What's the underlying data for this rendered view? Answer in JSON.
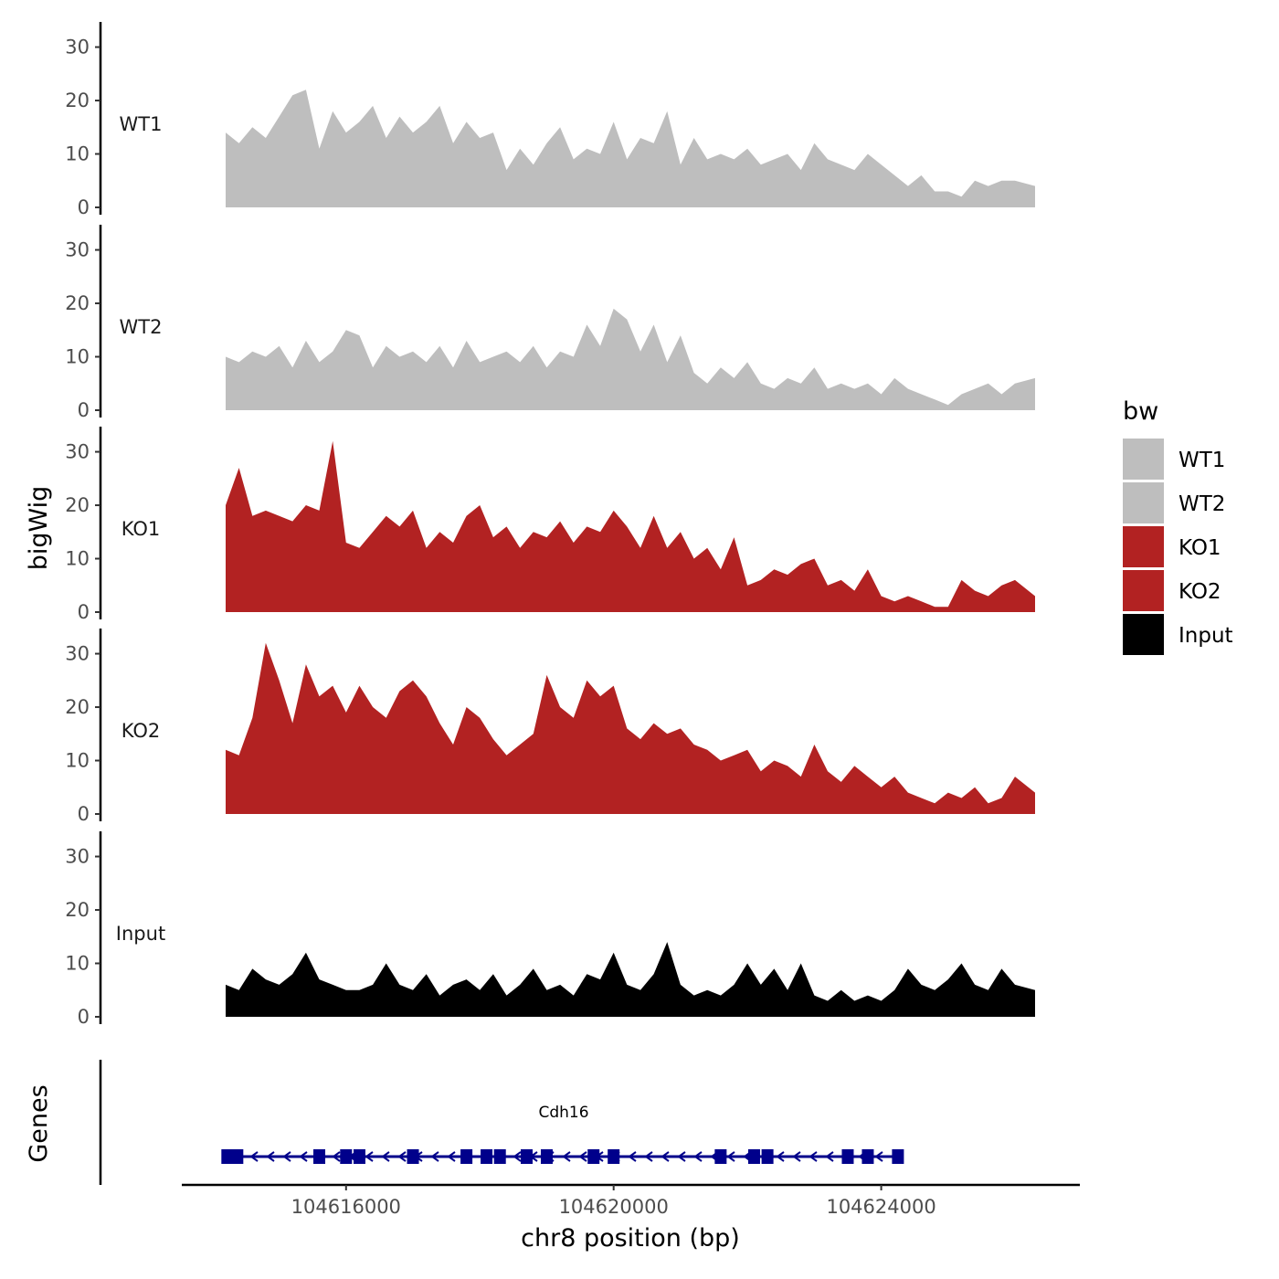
{
  "chart_data": {
    "type": "area",
    "title": "",
    "ylabel": "bigWig",
    "xlabel": "chr8 position (bp)",
    "x_range": [
      104614200,
      104626300
    ],
    "x_ticks": [
      104616000,
      104620000,
      104624000
    ],
    "x_tick_labels": [
      "104616000",
      "104620000",
      "104624000"
    ],
    "ylim": [
      0,
      33
    ],
    "y_ticks": [
      0,
      10,
      20,
      30
    ],
    "y_tick_labels": [
      "0",
      "10",
      "20",
      "30"
    ],
    "legend": {
      "title": "bw",
      "position": "right",
      "items": [
        {
          "label": "WT1",
          "color": "#BEBEBE"
        },
        {
          "label": "WT2",
          "color": "#BEBEBE"
        },
        {
          "label": "KO1",
          "color": "#B22222"
        },
        {
          "label": "KO2",
          "color": "#B22222"
        },
        {
          "label": "Input",
          "color": "#000000"
        }
      ]
    },
    "x": [
      104614200,
      104614400,
      104614600,
      104614800,
      104615000,
      104615200,
      104615400,
      104615600,
      104615800,
      104616000,
      104616200,
      104616400,
      104616600,
      104616800,
      104617000,
      104617200,
      104617400,
      104617600,
      104617800,
      104618000,
      104618200,
      104618400,
      104618600,
      104618800,
      104619000,
      104619200,
      104619400,
      104619600,
      104619800,
      104620000,
      104620200,
      104620400,
      104620600,
      104620800,
      104621000,
      104621200,
      104621400,
      104621600,
      104621800,
      104622000,
      104622200,
      104622400,
      104622600,
      104622800,
      104623000,
      104623200,
      104623400,
      104623600,
      104623800,
      104624000,
      104624200,
      104624400,
      104624600,
      104624800,
      104625000,
      104625200,
      104625400,
      104625600,
      104625800,
      104626000,
      104626300
    ],
    "series": [
      {
        "name": "WT1",
        "color": "#BEBEBE",
        "values": [
          14,
          12,
          15,
          13,
          17,
          21,
          22,
          11,
          18,
          14,
          16,
          19,
          13,
          17,
          14,
          16,
          19,
          12,
          16,
          13,
          14,
          7,
          11,
          8,
          12,
          15,
          9,
          11,
          10,
          16,
          9,
          13,
          12,
          18,
          8,
          13,
          9,
          10,
          9,
          11,
          8,
          9,
          10,
          7,
          12,
          9,
          8,
          7,
          10,
          8,
          6,
          4,
          6,
          3,
          3,
          2,
          5,
          4,
          5,
          5,
          4
        ]
      },
      {
        "name": "WT2",
        "color": "#BEBEBE",
        "values": [
          10,
          9,
          11,
          10,
          12,
          8,
          13,
          9,
          11,
          15,
          14,
          8,
          12,
          10,
          11,
          9,
          12,
          8,
          13,
          9,
          10,
          11,
          9,
          12,
          8,
          11,
          10,
          16,
          12,
          19,
          17,
          11,
          16,
          9,
          14,
          7,
          5,
          8,
          6,
          9,
          5,
          4,
          6,
          5,
          8,
          4,
          5,
          4,
          5,
          3,
          6,
          4,
          3,
          2,
          1,
          3,
          4,
          5,
          3,
          5,
          6
        ]
      },
      {
        "name": "KO1",
        "color": "#B22222",
        "values": [
          20,
          27,
          18,
          19,
          18,
          17,
          20,
          19,
          32,
          13,
          12,
          15,
          18,
          16,
          19,
          12,
          15,
          13,
          18,
          20,
          14,
          16,
          12,
          15,
          14,
          17,
          13,
          16,
          15,
          19,
          16,
          12,
          18,
          12,
          15,
          10,
          12,
          8,
          14,
          5,
          6,
          8,
          7,
          9,
          10,
          5,
          6,
          4,
          8,
          3,
          2,
          3,
          2,
          1,
          1,
          6,
          4,
          3,
          5,
          6,
          3
        ]
      },
      {
        "name": "KO2",
        "color": "#B22222",
        "values": [
          12,
          11,
          18,
          32,
          25,
          17,
          28,
          22,
          24,
          19,
          24,
          20,
          18,
          23,
          25,
          22,
          17,
          13,
          20,
          18,
          14,
          11,
          13,
          15,
          26,
          20,
          18,
          25,
          22,
          24,
          16,
          14,
          17,
          15,
          16,
          13,
          12,
          10,
          11,
          12,
          8,
          10,
          9,
          7,
          13,
          8,
          6,
          9,
          7,
          5,
          7,
          4,
          3,
          2,
          4,
          3,
          5,
          2,
          3,
          7,
          4
        ]
      },
      {
        "name": "Input",
        "color": "#000000",
        "values": [
          6,
          5,
          9,
          7,
          6,
          8,
          12,
          7,
          6,
          5,
          5,
          6,
          10,
          6,
          5,
          8,
          4,
          6,
          7,
          5,
          8,
          4,
          6,
          9,
          5,
          6,
          4,
          8,
          7,
          12,
          6,
          5,
          8,
          14,
          6,
          4,
          5,
          4,
          6,
          10,
          6,
          9,
          5,
          10,
          4,
          3,
          5,
          3,
          4,
          3,
          5,
          9,
          6,
          5,
          7,
          10,
          6,
          5,
          9,
          6,
          5
        ]
      }
    ],
    "genes": {
      "panel_label": "Genes",
      "name": "Cdh16",
      "strand": "-",
      "color": "#00008B",
      "start": 104614200,
      "end": 104624250,
      "exons": [
        104614300,
        104615600,
        104616000,
        104616200,
        104617000,
        104617800,
        104618100,
        104618300,
        104618700,
        104619000,
        104619700,
        104620000,
        104621600,
        104622100,
        104622300,
        104623500,
        104623800,
        104624250
      ]
    }
  }
}
